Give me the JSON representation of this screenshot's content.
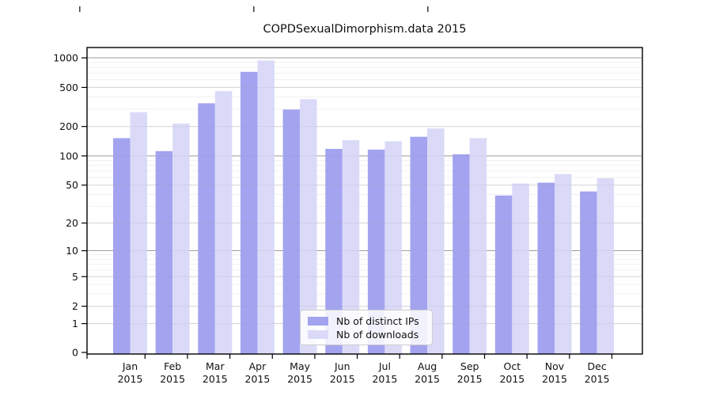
{
  "chart_data": {
    "type": "bar",
    "title": "COPDSexualDimorphism.data 2015",
    "categories": [
      "Jan",
      "Feb",
      "Mar",
      "Apr",
      "May",
      "Jun",
      "Jul",
      "Aug",
      "Sep",
      "Oct",
      "Nov",
      "Dec"
    ],
    "year_label": "2015",
    "series": [
      {
        "name": "Nb of distinct IPs",
        "color": "#a3a3f0",
        "values": [
          152,
          112,
          345,
          720,
          298,
          118,
          116,
          157,
          104,
          39,
          53,
          43
        ]
      },
      {
        "name": "Nb of downloads",
        "color": "#dadaf8",
        "values": [
          280,
          214,
          458,
          940,
          380,
          145,
          141,
          191,
          152,
          52,
          65,
          59
        ]
      }
    ],
    "y_ticks": [
      0,
      1,
      2,
      5,
      10,
      20,
      50,
      100,
      200,
      500,
      1000
    ],
    "y_minor_ticks": [
      3,
      4,
      6,
      7,
      8,
      9,
      30,
      40,
      60,
      70,
      80,
      90,
      300,
      400,
      600,
      700,
      800,
      900
    ],
    "y_scale": "log10(value+1)",
    "ylim": [
      0,
      1000
    ],
    "grid": "on",
    "legend_position": "inside-bottom-center",
    "colors": {
      "axis": "#000000",
      "grid_decade": "#9e9e9e",
      "grid_major": "#e0e0e0",
      "grid_minor": "#f0f0f0",
      "text": "#111111"
    }
  }
}
